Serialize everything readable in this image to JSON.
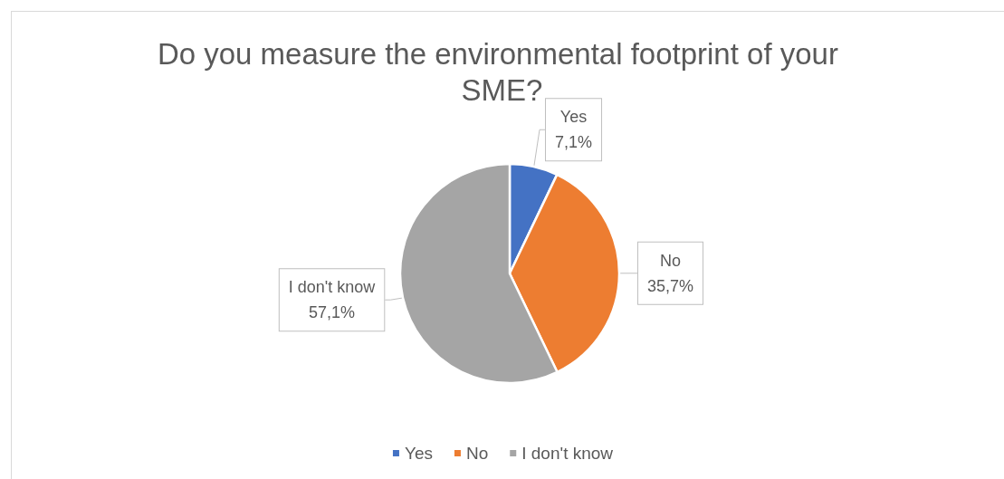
{
  "chart_data": {
    "type": "pie",
    "title": "Do you measure the environmental footprint of your SME?",
    "categories": [
      "Yes",
      "No",
      "I don't know"
    ],
    "values": [
      7.1,
      35.7,
      57.1
    ],
    "colors": [
      "#4472c4",
      "#ed7d31",
      "#a5a5a5"
    ],
    "value_labels": [
      "7,1%",
      "35,7%",
      "57,1%"
    ],
    "legend": "bottom"
  }
}
